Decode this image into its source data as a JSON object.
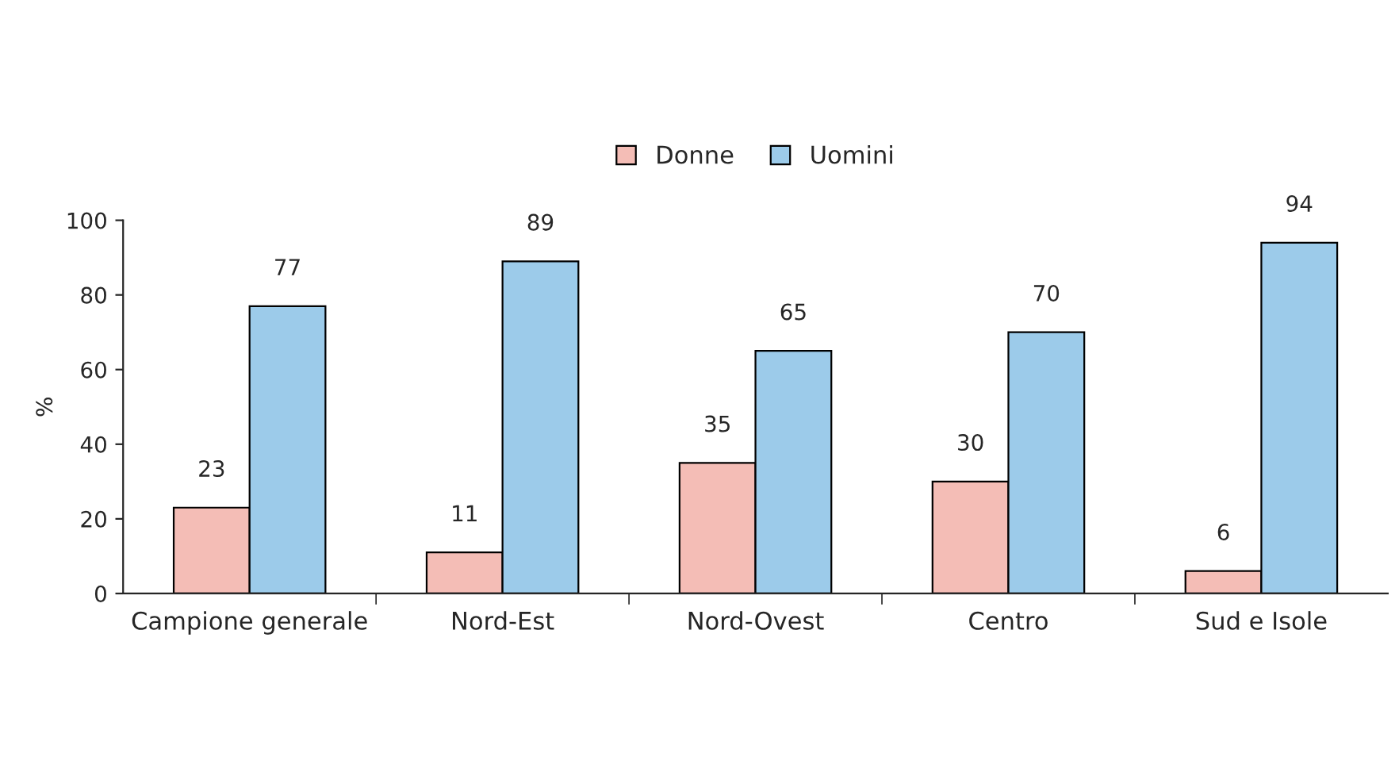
{
  "chart_data": {
    "type": "bar",
    "ylabel": "%",
    "categories": [
      "Campione generale",
      "Nord-Est",
      "Nord-Ovest",
      "Centro",
      "Sud e Isole"
    ],
    "series": [
      {
        "name": "Donne",
        "color": "#f4bdb6",
        "values": [
          23,
          11,
          35,
          30,
          6
        ]
      },
      {
        "name": "Uomini",
        "color": "#9ccbea",
        "values": [
          77,
          89,
          65,
          70,
          94
        ]
      }
    ],
    "ylim": [
      0,
      100
    ],
    "yticks": [
      0,
      20,
      40,
      60,
      80,
      100
    ],
    "grid": false,
    "legend": "top",
    "data_labels": true
  }
}
